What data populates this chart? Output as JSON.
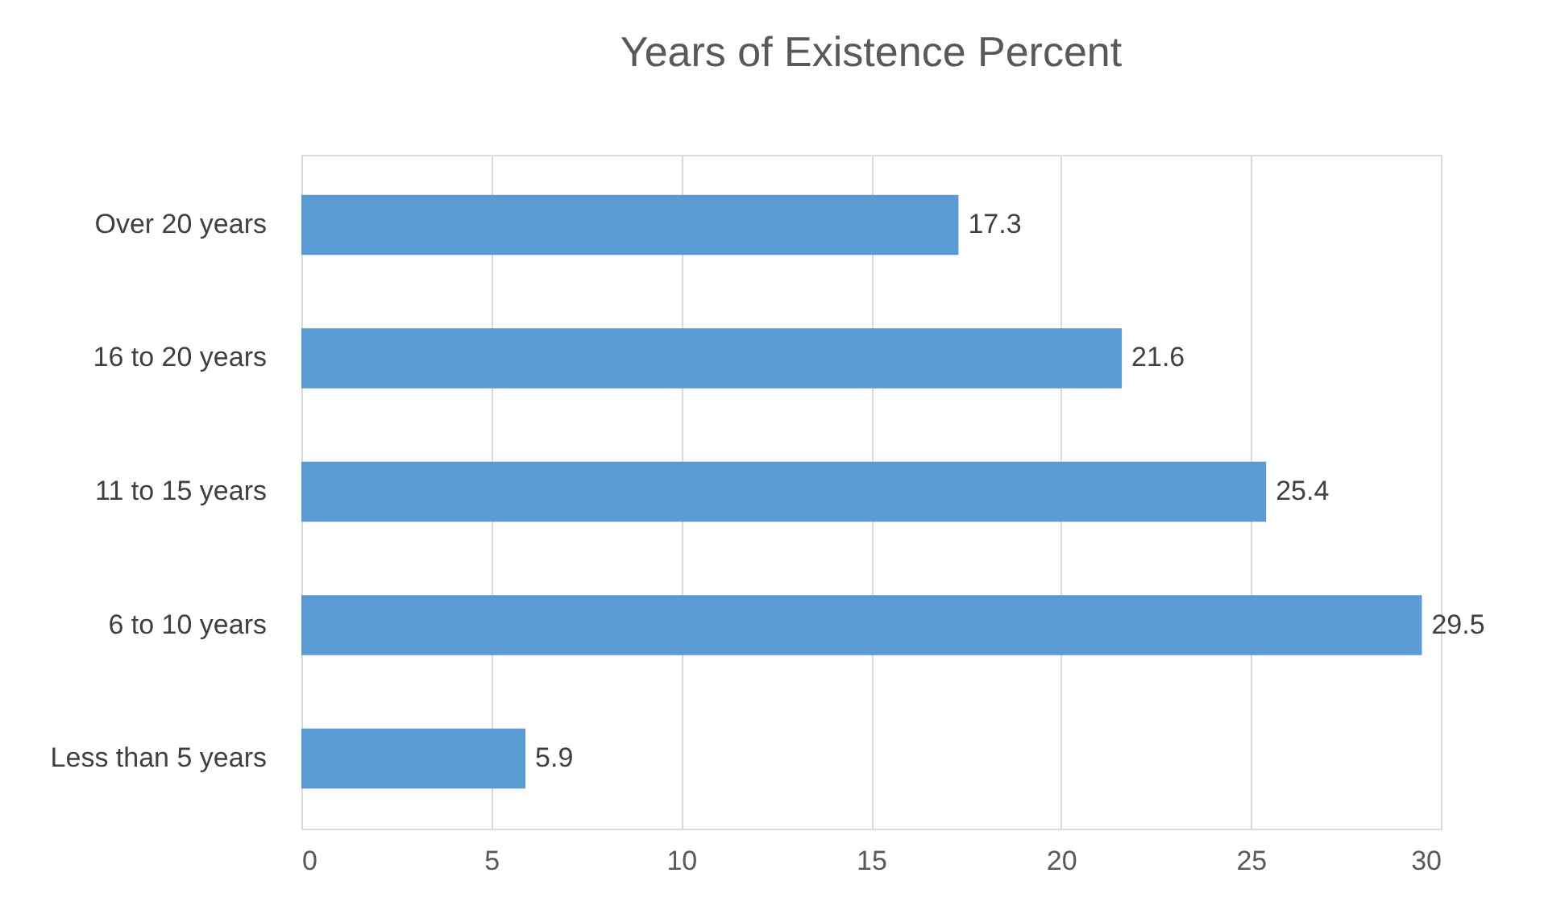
{
  "chart_data": {
    "type": "bar",
    "orientation": "horizontal",
    "title": "Years of Existence Percent",
    "categories": [
      "Over 20 years",
      "16 to 20 years",
      "11 to 15 years",
      "6 to 10 years",
      "Less than 5 years"
    ],
    "values": [
      17.3,
      21.6,
      25.4,
      29.5,
      5.9
    ],
    "color": "#5b9bd5",
    "xlim": [
      0,
      30
    ],
    "xticks": [
      0,
      5,
      10,
      15,
      20,
      25,
      30
    ],
    "grid": "x",
    "data_labels": true
  }
}
